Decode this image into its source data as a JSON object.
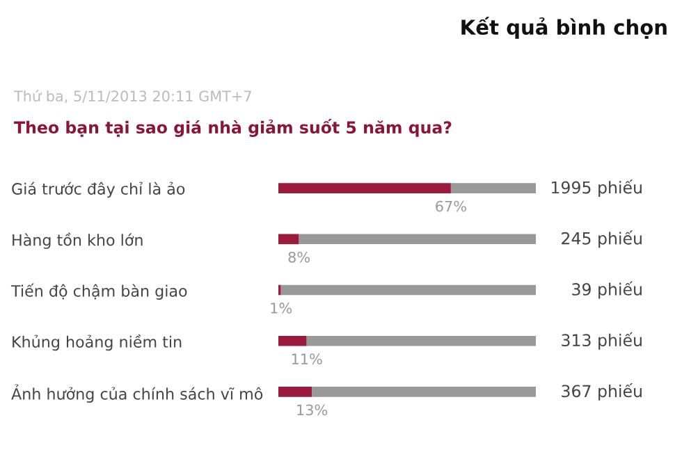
{
  "chart_data": {
    "type": "bar",
    "orientation": "horizontal",
    "stacked": true,
    "title": "Kết quả bình chọn",
    "subtitle": "Theo bạn tại sao giá nhà giảm suốt 5 năm qua?",
    "categories": [
      "Giá trước đây chỉ là ảo",
      "Hàng tồn kho lớn",
      "Tiến độ chậm bàn giao",
      "Khủng hoảng niềm tin",
      "Ảnh hưởng của chính sách vĩ mô"
    ],
    "series": [
      {
        "color": "#9b1b3f",
        "values": [
          67,
          8,
          1,
          11,
          13
        ],
        "value_labels": [
          "67%",
          "8%",
          "1%",
          "11%",
          "13%"
        ]
      },
      {
        "color": "#999999",
        "values": [
          33,
          92,
          99,
          89,
          87
        ]
      }
    ],
    "xlim": [
      0,
      100
    ],
    "tick_labels": "y",
    "grid": false,
    "legend": false,
    "annotations": [
      "Thứ ba, 5/11/2013 20:11 GMT+7",
      "1995 phiếu",
      "245 phiếu",
      "39 phiếu",
      "313 phiếu",
      "367 phiếu"
    ]
  }
}
